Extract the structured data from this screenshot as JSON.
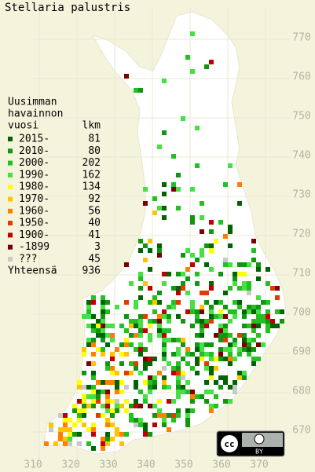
{
  "title": "Stellaria palustris",
  "legend": {
    "heading": [
      "Uusimman",
      "havainnon"
    ],
    "year_header": "vuosi",
    "count_header": "lkm",
    "rows": [
      {
        "label": "2015-",
        "count": 81,
        "color": "#006400"
      },
      {
        "label": "2010-",
        "count": 80,
        "color": "#129612"
      },
      {
        "label": "2000-",
        "count": 202,
        "color": "#22c022"
      },
      {
        "label": "1990-",
        "count": 162,
        "color": "#44e044"
      },
      {
        "label": "1980-",
        "count": 134,
        "color": "#ffff00"
      },
      {
        "label": "1970-",
        "count": 92,
        "color": "#ffc400"
      },
      {
        "label": "1960-",
        "count": 56,
        "color": "#ff8000"
      },
      {
        "label": "1950-",
        "count": 40,
        "color": "#e03c00"
      },
      {
        "label": "1900-",
        "count": 41,
        "color": "#c00000"
      },
      {
        "label": "-1899",
        "count": 3,
        "color": "#7a0000"
      },
      {
        "label": "???",
        "count": 45,
        "color": "#c8c8c8"
      }
    ],
    "total_label": "Yhteensä",
    "total": 936
  },
  "x_axis": {
    "ticks": [
      310,
      320,
      330,
      340,
      350,
      360,
      370
    ]
  },
  "y_axis": {
    "ticks": [
      670,
      680,
      690,
      700,
      710,
      720,
      730,
      740,
      750,
      760,
      770
    ]
  },
  "license": {
    "icon": "cc",
    "label": "BY"
  }
}
